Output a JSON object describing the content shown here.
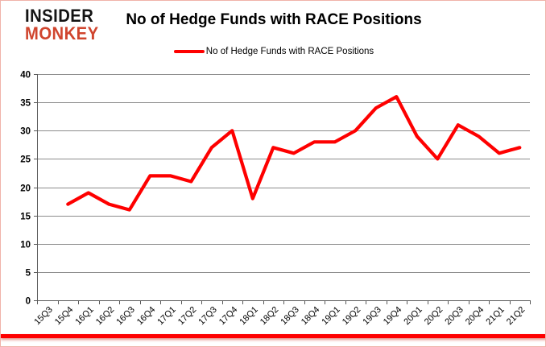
{
  "logo": {
    "line1": "INSIDER",
    "line2": "MONKEY"
  },
  "header": {
    "title": "No of Hedge Funds with RACE Positions"
  },
  "legend": {
    "label": "No of Hedge Funds with RACE Positions"
  },
  "colors": {
    "line_red": "#fe0000",
    "logo_red": "#d0452e",
    "grid": "#8c8c8c",
    "axis": "#595959",
    "text": "#000000",
    "frame_border": "#f0b3aa"
  },
  "chart_data": {
    "type": "line",
    "title": "No of Hedge Funds with RACE Positions",
    "categories": [
      "15Q3",
      "15Q4",
      "16Q1",
      "16Q2",
      "16Q3",
      "16Q4",
      "17Q1",
      "17Q2",
      "17Q3",
      "17Q4",
      "18Q1",
      "18Q2",
      "18Q3",
      "18Q4",
      "19Q1",
      "19Q2",
      "19Q3",
      "19Q4",
      "20Q1",
      "20Q2",
      "20Q3",
      "20Q4",
      "21Q1",
      "21Q2"
    ],
    "series": [
      {
        "name": "No of Hedge Funds with RACE Positions",
        "color": "#fe0000",
        "values": [
          null,
          17,
          19,
          17,
          16,
          22,
          22,
          21,
          27,
          30,
          18,
          27,
          26,
          28,
          28,
          30,
          34,
          36,
          29,
          25,
          31,
          29,
          26,
          27
        ]
      }
    ],
    "xlabel": "",
    "ylabel": "",
    "ylim": [
      0,
      40
    ],
    "yticks": [
      0,
      5,
      10,
      15,
      20,
      25,
      30,
      35,
      40
    ],
    "grid": true,
    "legend_position": "top"
  }
}
